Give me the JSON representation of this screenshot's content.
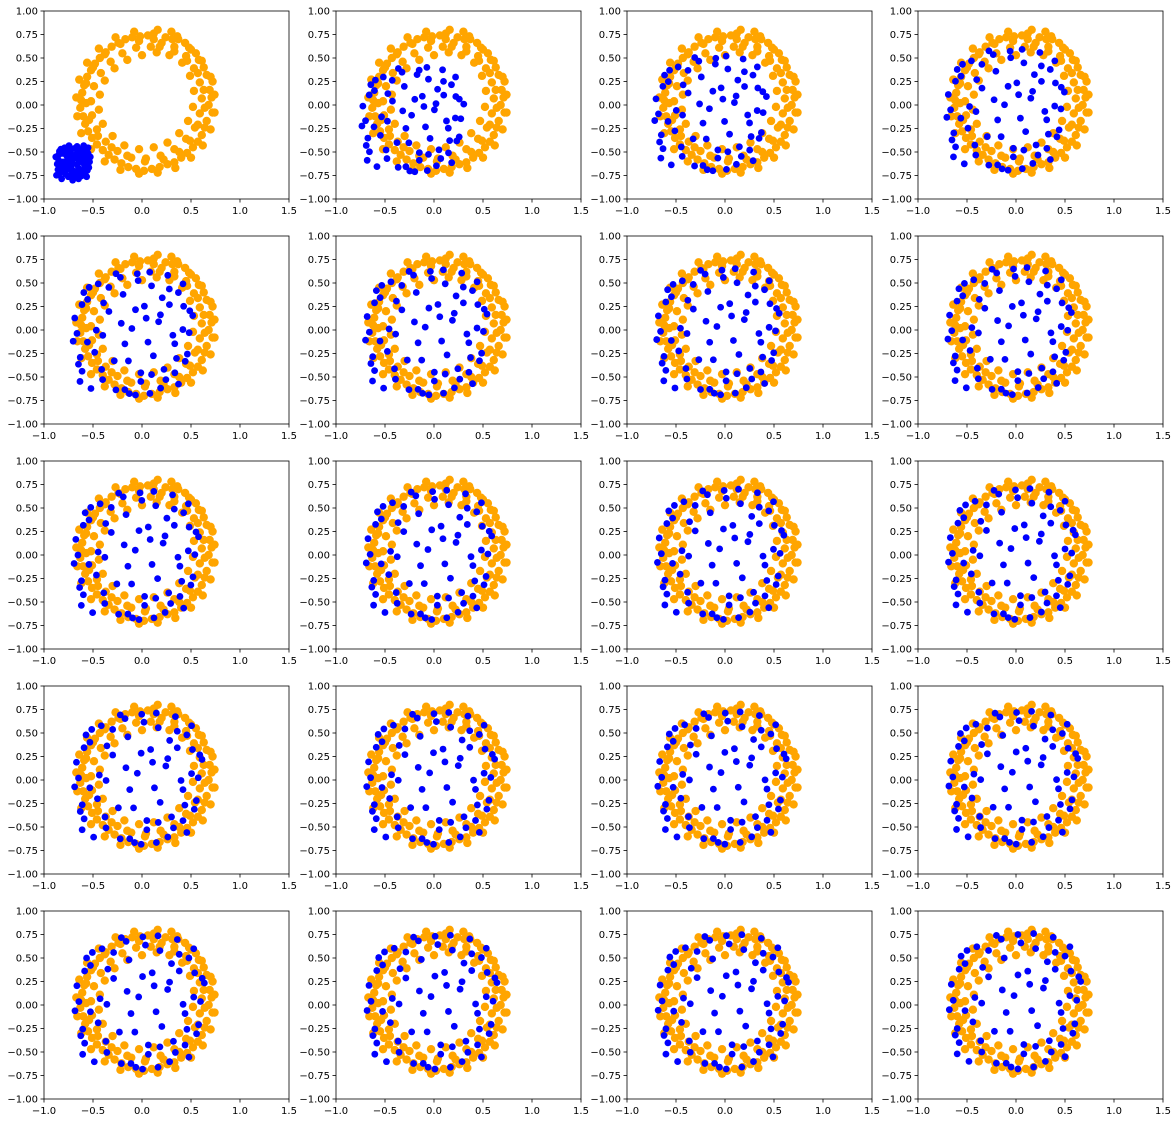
{
  "chart_data": {
    "type": "scatter",
    "layout": {
      "rows": 5,
      "cols": 4
    },
    "xlim": [
      -1.0,
      1.5
    ],
    "ylim": [
      -1.0,
      1.0
    ],
    "x_ticks": [
      "−1.0",
      "−0.5",
      "0.0",
      "0.5",
      "1.0",
      "1.5"
    ],
    "x_tick_values": [
      -1.0,
      -0.5,
      0.0,
      0.5,
      1.0,
      1.5
    ],
    "y_ticks": [
      "−1.00",
      "−0.75",
      "−0.50",
      "−0.25",
      "0.00",
      "0.25",
      "0.50",
      "0.75",
      "1.00"
    ],
    "y_tick_values": [
      -1.0,
      -0.75,
      -0.5,
      -0.25,
      0.0,
      0.25,
      0.5,
      0.75,
      1.0
    ],
    "grid": false,
    "colors": {
      "ring": "#ffa500",
      "moving": "#0000ff"
    },
    "ring_points": [
      [
        0.24,
        0.72
      ],
      [
        0.37,
        0.7
      ],
      [
        0.5,
        0.59
      ],
      [
        0.58,
        0.48
      ],
      [
        0.66,
        0.32
      ],
      [
        0.69,
        0.16
      ],
      [
        0.68,
        0.0
      ],
      [
        0.66,
        -0.17
      ],
      [
        0.61,
        -0.32
      ],
      [
        0.52,
        -0.45
      ],
      [
        0.4,
        -0.56
      ],
      [
        0.26,
        -0.63
      ],
      [
        0.1,
        -0.68
      ],
      [
        -0.06,
        -0.68
      ],
      [
        -0.21,
        -0.62
      ],
      [
        -0.34,
        -0.53
      ],
      [
        -0.46,
        -0.42
      ],
      [
        -0.55,
        -0.28
      ],
      [
        -0.6,
        -0.12
      ],
      [
        -0.62,
        0.05
      ],
      [
        -0.59,
        0.21
      ],
      [
        -0.52,
        0.37
      ],
      [
        -0.43,
        0.5
      ],
      [
        -0.31,
        0.62
      ],
      [
        -0.17,
        0.7
      ],
      [
        -0.02,
        0.73
      ],
      [
        0.12,
        0.76
      ],
      [
        0.3,
        0.78
      ],
      [
        0.44,
        0.66
      ],
      [
        0.55,
        0.55
      ],
      [
        0.63,
        0.4
      ],
      [
        0.72,
        0.25
      ],
      [
        0.71,
        0.08
      ],
      [
        0.72,
        -0.08
      ],
      [
        0.64,
        -0.24
      ],
      [
        0.57,
        -0.39
      ],
      [
        0.46,
        -0.51
      ],
      [
        0.33,
        -0.61
      ],
      [
        0.18,
        -0.66
      ],
      [
        0.02,
        -0.7
      ],
      [
        -0.14,
        -0.66
      ],
      [
        -0.28,
        -0.58
      ],
      [
        -0.4,
        -0.48
      ],
      [
        -0.51,
        -0.35
      ],
      [
        -0.58,
        -0.2
      ],
      [
        -0.63,
        -0.03
      ],
      [
        -0.61,
        0.13
      ],
      [
        -0.56,
        0.3
      ],
      [
        -0.48,
        0.44
      ],
      [
        -0.37,
        0.56
      ],
      [
        -0.24,
        0.66
      ],
      [
        -0.1,
        0.72
      ],
      [
        0.06,
        0.74
      ],
      [
        0.2,
        0.66
      ],
      [
        0.33,
        0.62
      ],
      [
        0.45,
        0.52
      ],
      [
        0.53,
        0.39
      ],
      [
        0.59,
        0.24
      ],
      [
        0.61,
        0.07
      ],
      [
        0.59,
        -0.09
      ],
      [
        0.54,
        -0.24
      ],
      [
        0.45,
        -0.36
      ],
      [
        0.33,
        -0.47
      ],
      [
        0.19,
        -0.54
      ],
      [
        0.04,
        -0.57
      ],
      [
        -0.11,
        -0.56
      ],
      [
        -0.25,
        -0.49
      ],
      [
        -0.37,
        -0.39
      ],
      [
        -0.46,
        -0.26
      ],
      [
        -0.51,
        -0.11
      ],
      [
        -0.52,
        0.04
      ],
      [
        -0.49,
        0.2
      ],
      [
        -0.42,
        0.34
      ],
      [
        -0.32,
        0.46
      ],
      [
        -0.2,
        0.55
      ],
      [
        -0.06,
        0.61
      ],
      [
        0.09,
        0.62
      ],
      [
        0.28,
        0.53
      ],
      [
        0.41,
        0.45
      ],
      [
        0.49,
        0.31
      ],
      [
        0.53,
        0.15
      ],
      [
        0.52,
        -0.02
      ],
      [
        0.47,
        -0.17
      ],
      [
        0.38,
        -0.3
      ],
      [
        0.26,
        -0.4
      ],
      [
        0.12,
        -0.45
      ],
      [
        -0.03,
        -0.47
      ],
      [
        -0.18,
        -0.43
      ],
      [
        -0.3,
        -0.33
      ],
      [
        -0.4,
        -0.2
      ],
      [
        -0.44,
        -0.05
      ],
      [
        -0.43,
        0.11
      ],
      [
        -0.38,
        0.26
      ],
      [
        -0.28,
        0.39
      ],
      [
        -0.15,
        0.48
      ],
      [
        0.0,
        0.53
      ],
      [
        0.15,
        0.56
      ],
      [
        0.36,
        0.73
      ],
      [
        0.16,
        0.8
      ],
      [
        -0.08,
        0.78
      ],
      [
        -0.27,
        0.72
      ],
      [
        -0.44,
        0.6
      ],
      [
        -0.56,
        0.45
      ],
      [
        -0.64,
        0.27
      ],
      [
        -0.67,
        0.08
      ],
      [
        -0.66,
        -0.12
      ],
      [
        -0.62,
        -0.3
      ],
      [
        -0.52,
        -0.47
      ],
      [
        -0.38,
        -0.6
      ],
      [
        -0.22,
        -0.69
      ],
      [
        -0.03,
        -0.73
      ],
      [
        0.16,
        -0.72
      ],
      [
        0.34,
        -0.67
      ],
      [
        0.5,
        -0.56
      ],
      [
        0.62,
        -0.43
      ],
      [
        0.7,
        -0.26
      ],
      [
        0.74,
        -0.08
      ],
      [
        0.74,
        0.11
      ],
      [
        0.7,
        0.3
      ],
      [
        0.61,
        0.47
      ],
      [
        0.48,
        0.61
      ],
      [
        0.31,
        0.7
      ],
      [
        0.12,
        0.7
      ],
      [
        -0.03,
        0.68
      ],
      [
        -0.22,
        0.65
      ],
      [
        -0.38,
        0.54
      ],
      [
        -0.5,
        0.4
      ],
      [
        -0.57,
        0.23
      ],
      [
        -0.57,
        0.02
      ],
      [
        -0.54,
        -0.16
      ],
      [
        -0.45,
        -0.33
      ],
      [
        -0.31,
        -0.45
      ],
      [
        -0.15,
        -0.54
      ],
      [
        0.03,
        -0.6
      ],
      [
        0.22,
        -0.58
      ],
      [
        0.38,
        -0.5
      ],
      [
        0.49,
        -0.38
      ],
      [
        0.57,
        -0.21
      ],
      [
        0.64,
        -0.03
      ],
      [
        0.63,
        0.16
      ],
      [
        0.57,
        0.34
      ],
      [
        0.46,
        0.47
      ],
      [
        0.33,
        0.57
      ],
      [
        0.18,
        0.62
      ]
    ],
    "moving_center": [
      -0.7,
      -0.62
    ],
    "moving_offsets": [
      [
        0.09,
        0.17
      ],
      [
        -0.18,
        -0.07
      ],
      [
        -0.05,
        0.2
      ],
      [
        0.16,
        0.06
      ],
      [
        -0.03,
        -0.16
      ],
      [
        0.12,
        0.2
      ],
      [
        -0.2,
        0.04
      ],
      [
        0.03,
        0.12
      ],
      [
        0.19,
        -0.1
      ],
      [
        -0.11,
        -0.15
      ],
      [
        0.07,
        -0.07
      ],
      [
        -0.15,
        0.14
      ],
      [
        0.2,
        0.14
      ],
      [
        -0.02,
        0.03
      ],
      [
        0.11,
        -0.18
      ],
      [
        -0.19,
        -0.14
      ],
      [
        0.15,
        -0.02
      ],
      [
        -0.08,
        0.08
      ],
      [
        0.05,
        0.24
      ],
      [
        -0.22,
        -0.01
      ],
      [
        0.0,
        -0.21
      ],
      [
        0.22,
        0.02
      ],
      [
        -0.12,
        0.22
      ],
      [
        0.13,
        0.11
      ],
      [
        -0.06,
        -0.08
      ],
      [
        0.08,
        0.04
      ],
      [
        -0.16,
        -0.22
      ],
      [
        0.18,
        -0.19
      ],
      [
        -0.09,
        0.0
      ],
      [
        0.02,
        -0.12
      ],
      [
        0.14,
        0.25
      ],
      [
        -0.24,
        0.09
      ],
      [
        0.1,
        -0.11
      ],
      [
        -0.04,
        0.15
      ],
      [
        -0.13,
        -0.05
      ],
      [
        0.21,
        -0.06
      ],
      [
        -0.01,
        -0.24
      ],
      [
        0.04,
        0.07
      ],
      [
        -0.17,
        0.2
      ],
      [
        0.17,
        0.17
      ],
      [
        -0.07,
        -0.19
      ],
      [
        0.06,
        0.18
      ],
      [
        -0.21,
        -0.09
      ],
      [
        0.12,
        -0.15
      ],
      [
        -0.1,
        0.12
      ],
      [
        0.01,
        0.21
      ],
      [
        0.23,
        0.09
      ],
      [
        -0.14,
        0.02
      ],
      [
        0.07,
        -0.22
      ],
      [
        -0.03,
        -0.03
      ],
      [
        0.16,
        -0.13
      ],
      [
        -0.19,
        0.17
      ],
      [
        0.09,
        0.08
      ],
      [
        -0.06,
        0.25
      ],
      [
        -0.23,
        -0.17
      ],
      [
        0.2,
        0.22
      ],
      [
        0.0,
        0.1
      ],
      [
        -0.12,
        -0.12
      ],
      [
        0.13,
        0.01
      ],
      [
        -0.09,
        0.19
      ],
      [
        0.05,
        -0.02
      ],
      [
        0.18,
        0.11
      ],
      [
        -0.17,
        -0.02
      ],
      [
        0.02,
        -0.17
      ],
      [
        -0.05,
        0.05
      ],
      [
        0.1,
        0.14
      ],
      [
        -0.2,
        0.12
      ],
      [
        0.15,
        -0.08
      ],
      [
        -0.02,
        -0.09
      ],
      [
        0.06,
        -0.14
      ]
    ],
    "moving_targets": [
      [
        0.64,
        0.3
      ],
      [
        -0.64,
        0.05
      ],
      [
        -0.15,
        0.7
      ],
      [
        0.58,
        -0.3
      ],
      [
        -0.1,
        -0.62
      ],
      [
        0.4,
        0.56
      ],
      [
        -0.6,
        -0.25
      ],
      [
        0.12,
        0.36
      ],
      [
        0.55,
        0.1
      ],
      [
        -0.35,
        -0.5
      ],
      [
        0.22,
        -0.22
      ],
      [
        -0.52,
        0.44
      ],
      [
        0.02,
        0.75
      ],
      [
        -0.02,
        0.1
      ],
      [
        0.3,
        -0.6
      ],
      [
        -0.58,
        -0.4
      ],
      [
        0.46,
        -0.08
      ],
      [
        -0.28,
        0.3
      ],
      [
        0.18,
        0.76
      ],
      [
        -0.68,
        -0.05
      ],
      [
        0.02,
        -0.68
      ],
      [
        0.62,
        0.05
      ],
      [
        -0.4,
        0.62
      ],
      [
        0.4,
        0.38
      ],
      [
        -0.22,
        -0.28
      ],
      [
        0.28,
        0.18
      ],
      [
        -0.48,
        -0.6
      ],
      [
        0.5,
        -0.55
      ],
      [
        -0.35,
        0.02
      ],
      [
        0.08,
        -0.42
      ],
      [
        0.38,
        0.72
      ],
      [
        -0.66,
        0.22
      ],
      [
        0.34,
        -0.38
      ],
      [
        -0.12,
        0.5
      ],
      [
        -0.44,
        -0.18
      ],
      [
        0.6,
        -0.2
      ],
      [
        -0.05,
        -0.66
      ],
      [
        0.14,
        0.22
      ],
      [
        -0.5,
        0.58
      ],
      [
        0.5,
        0.52
      ],
      [
        -0.2,
        -0.62
      ],
      [
        0.2,
        0.6
      ],
      [
        -0.62,
        -0.32
      ],
      [
        0.36,
        -0.5
      ],
      [
        -0.34,
        0.4
      ],
      [
        0.05,
        0.66
      ],
      [
        0.66,
        0.25
      ],
      [
        -0.42,
        0.08
      ],
      [
        0.18,
        -0.66
      ],
      [
        -0.1,
        -0.08
      ],
      [
        0.46,
        -0.42
      ],
      [
        -0.56,
        0.52
      ],
      [
        0.3,
        0.26
      ],
      [
        -0.2,
        0.74
      ],
      [
        -0.6,
        -0.52
      ],
      [
        0.55,
        0.62
      ],
      [
        0.02,
        0.32
      ],
      [
        -0.36,
        -0.38
      ],
      [
        0.44,
        0.02
      ],
      [
        -0.28,
        0.58
      ],
      [
        0.16,
        -0.06
      ],
      [
        0.56,
        0.36
      ],
      [
        -0.52,
        -0.06
      ],
      [
        0.08,
        -0.52
      ],
      [
        -0.14,
        0.16
      ],
      [
        0.32,
        0.46
      ],
      [
        -0.58,
        0.38
      ],
      [
        0.48,
        -0.25
      ],
      [
        -0.06,
        -0.28
      ],
      [
        0.2,
        -0.44
      ]
    ],
    "panel_progress": [
      0,
      0.7,
      0.8,
      0.86,
      0.88,
      0.9,
      0.91,
      0.92,
      0.93,
      0.94,
      0.95,
      0.955,
      0.96,
      0.965,
      0.97,
      0.975,
      0.98,
      0.985,
      0.99,
      1
    ]
  }
}
